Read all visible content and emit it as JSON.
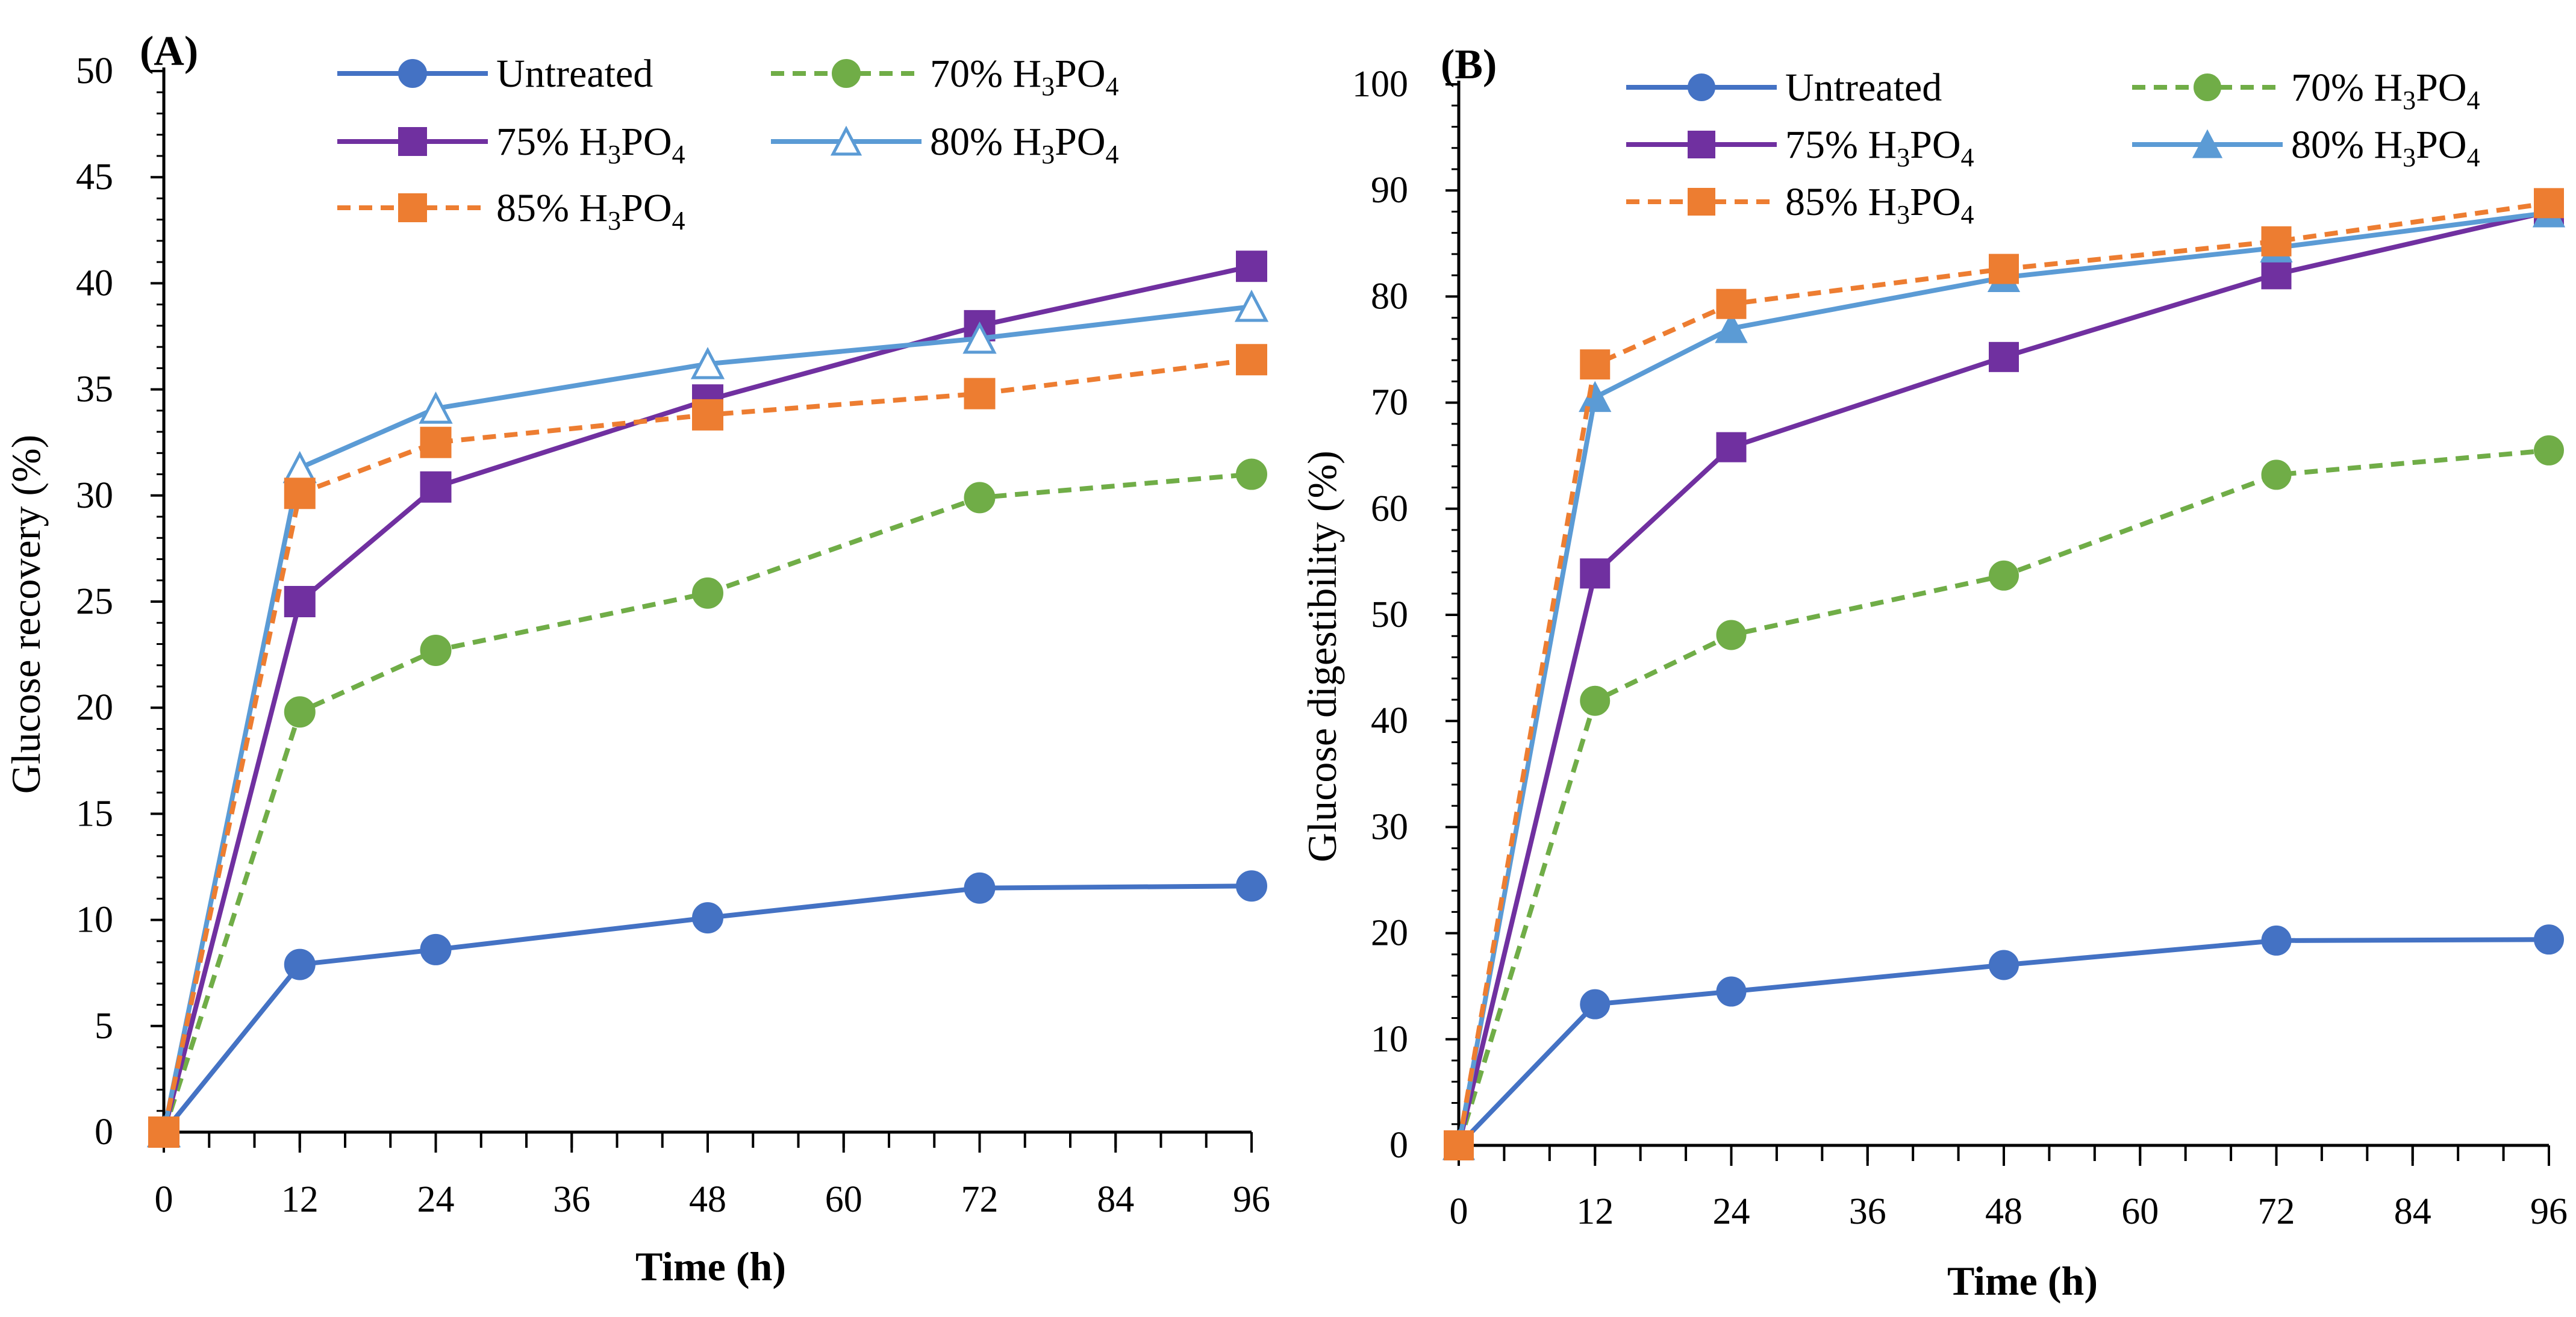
{
  "colors": {
    "untreated": "#4472C4",
    "p70": "#70AD47",
    "p75": "#7030A0",
    "p80": "#5B9BD5",
    "p85": "#ED7D31"
  },
  "chart_data": [
    {
      "panel_label": "(A)",
      "type": "line",
      "xlabel": "Time (h)",
      "ylabel": "Glucose recovery (%)",
      "ylim": [
        0,
        50
      ],
      "y_ticks": [
        "0",
        "5",
        "10",
        "15",
        "20",
        "25",
        "30",
        "35",
        "40",
        "45",
        "50"
      ],
      "y_tick_values": [
        0,
        5,
        10,
        15,
        20,
        25,
        30,
        35,
        40,
        45,
        50
      ],
      "xlim": [
        0,
        96
      ],
      "x_ticks": [
        "0",
        "12",
        "24",
        "36",
        "48",
        "60",
        "72",
        "84",
        "96"
      ],
      "x_tick_values": [
        0,
        12,
        24,
        36,
        48,
        60,
        72,
        84,
        96
      ],
      "x_minor_step": 4,
      "legend_position": "top",
      "series": [
        {
          "key": "untreated",
          "name_main": "Untreated",
          "name_sub": "",
          "name_tail": "",
          "marker": "circle",
          "dash": false,
          "filled": true,
          "x": [
            0,
            12,
            24,
            48,
            72,
            96
          ],
          "values": [
            0,
            7.9,
            8.6,
            10.1,
            11.5,
            11.6
          ]
        },
        {
          "key": "p70",
          "name_main": "70% H",
          "name_sub": "3",
          "name_tail": "PO",
          "name_sub2": "4",
          "marker": "circle",
          "dash": true,
          "filled": true,
          "x": [
            0,
            12,
            24,
            48,
            72,
            96
          ],
          "values": [
            0,
            19.8,
            22.7,
            25.4,
            29.9,
            31.0
          ]
        },
        {
          "key": "p75",
          "name_main": "75% H",
          "name_sub": "3",
          "name_tail": "PO",
          "name_sub2": "4",
          "marker": "square",
          "dash": false,
          "filled": true,
          "x": [
            0,
            12,
            24,
            48,
            72,
            96
          ],
          "values": [
            0,
            25.0,
            30.4,
            34.5,
            38.0,
            40.8
          ]
        },
        {
          "key": "p80",
          "name_main": "80% H",
          "name_sub": "3",
          "name_tail": "PO",
          "name_sub2": "4",
          "marker": "triangle",
          "dash": false,
          "filled": false,
          "x": [
            0,
            12,
            24,
            48,
            72,
            96
          ],
          "values": [
            0,
            31.3,
            34.1,
            36.2,
            37.4,
            38.9
          ]
        },
        {
          "key": "p85",
          "name_main": "85% H",
          "name_sub": "3",
          "name_tail": "PO",
          "name_sub2": "4",
          "marker": "square",
          "dash": true,
          "filled": true,
          "x": [
            0,
            12,
            24,
            48,
            72,
            96
          ],
          "values": [
            0,
            30.1,
            32.5,
            33.8,
            34.8,
            36.4
          ]
        }
      ]
    },
    {
      "panel_label": "(B)",
      "type": "line",
      "xlabel": "Time (h)",
      "ylabel": "Glucose digestibility (%)",
      "ylim": [
        0,
        100
      ],
      "y_ticks": [
        "0",
        "10",
        "20",
        "30",
        "40",
        "50",
        "60",
        "70",
        "80",
        "90",
        "100"
      ],
      "y_tick_values": [
        0,
        10,
        20,
        30,
        40,
        50,
        60,
        70,
        80,
        90,
        100
      ],
      "xlim": [
        0,
        96
      ],
      "x_ticks": [
        "0",
        "12",
        "24",
        "36",
        "48",
        "60",
        "72",
        "84",
        "96"
      ],
      "x_tick_values": [
        0,
        12,
        24,
        36,
        48,
        60,
        72,
        84,
        96
      ],
      "x_minor_step": 4,
      "legend_position": "top",
      "series": [
        {
          "key": "untreated",
          "name_main": "Untreated",
          "name_sub": "",
          "name_tail": "",
          "marker": "circle",
          "dash": false,
          "filled": true,
          "x": [
            0,
            12,
            24,
            48,
            72,
            96
          ],
          "values": [
            0,
            13.3,
            14.5,
            17.0,
            19.3,
            19.4
          ]
        },
        {
          "key": "p70",
          "name_main": "70% H",
          "name_sub": "3",
          "name_tail": "PO",
          "name_sub2": "4",
          "marker": "circle",
          "dash": true,
          "filled": true,
          "x": [
            0,
            12,
            24,
            48,
            72,
            96
          ],
          "values": [
            0,
            41.9,
            48.1,
            53.7,
            63.2,
            65.5
          ]
        },
        {
          "key": "p75",
          "name_main": "75% H",
          "name_sub": "3",
          "name_tail": "PO",
          "name_sub2": "4",
          "marker": "square",
          "dash": false,
          "filled": true,
          "x": [
            0,
            12,
            24,
            48,
            72,
            96
          ],
          "values": [
            0,
            53.9,
            65.8,
            74.3,
            82.1,
            88.0
          ]
        },
        {
          "key": "p80",
          "name_main": "80% H",
          "name_sub": "3",
          "name_tail": "PO",
          "name_sub2": "4",
          "marker": "triangle",
          "dash": false,
          "filled": true,
          "x": [
            0,
            12,
            24,
            48,
            72,
            96
          ],
          "values": [
            0,
            70.5,
            77.0,
            81.8,
            84.6,
            87.9
          ]
        },
        {
          "key": "p85",
          "name_main": "85% H",
          "name_sub": "3",
          "name_tail": "PO",
          "name_sub2": "4",
          "marker": "square",
          "dash": true,
          "filled": true,
          "x": [
            0,
            12,
            24,
            48,
            72,
            96
          ],
          "values": [
            0,
            73.6,
            79.3,
            82.6,
            85.2,
            88.8
          ]
        }
      ]
    }
  ]
}
